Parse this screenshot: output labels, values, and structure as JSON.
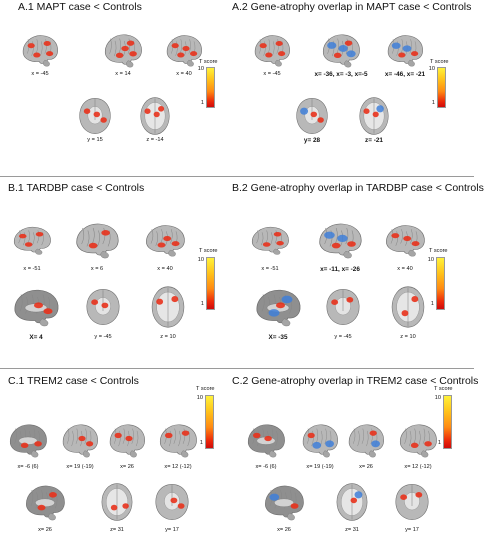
{
  "sections": [
    {
      "left_title": "A.1 MAPT case < Controls",
      "right_title": "A.2 Gene-atrophy overlap in MAPT case <  Controls",
      "left_labels": [
        "x = -45",
        "x = 14",
        "x = 40",
        "y = 15",
        "z = -14"
      ],
      "right_labels": [
        "x = -45",
        "x= -36, x= -3, x=-5",
        "x= -46, x= -21",
        "y= 28",
        "z= -21"
      ]
    },
    {
      "left_title": "B.1 TARDBP case < Controls",
      "right_title": "B.2 Gene-atrophy overlap in TARDBP case < Controls",
      "left_labels": [
        "x = -51",
        "x = 6",
        "x = 40",
        "X= 4",
        "y = -45",
        "z = 10"
      ],
      "right_labels": [
        "x = -51",
        "x= -11, x= -26",
        "x = 40",
        "X= -35",
        "y = -45",
        "z = 10"
      ]
    },
    {
      "left_title": "C.1 TREM2 case < Controls",
      "right_title": "C.2 Gene-atrophy overlap in TREM2 case < Controls",
      "left_labels": [
        "x= -6 (6)",
        "x= 19 (-19)",
        "x= 26",
        "x= 12 (-12)",
        "x= 26",
        "z= 31",
        "y= 17"
      ],
      "right_labels": [
        "x= -6 (6)",
        "x= 19 (-19)",
        "x= 26",
        "x= 12 (-12)",
        "x= 26",
        "z= 31",
        "y= 17"
      ]
    }
  ],
  "colorbar": {
    "title": "T score",
    "max": "10",
    "min": "1"
  },
  "colors": {
    "cortex": "#b8b8b8",
    "atrophy": "#e8321c",
    "overlap": "#3f7fd8",
    "separator": "#9a9a9a"
  }
}
